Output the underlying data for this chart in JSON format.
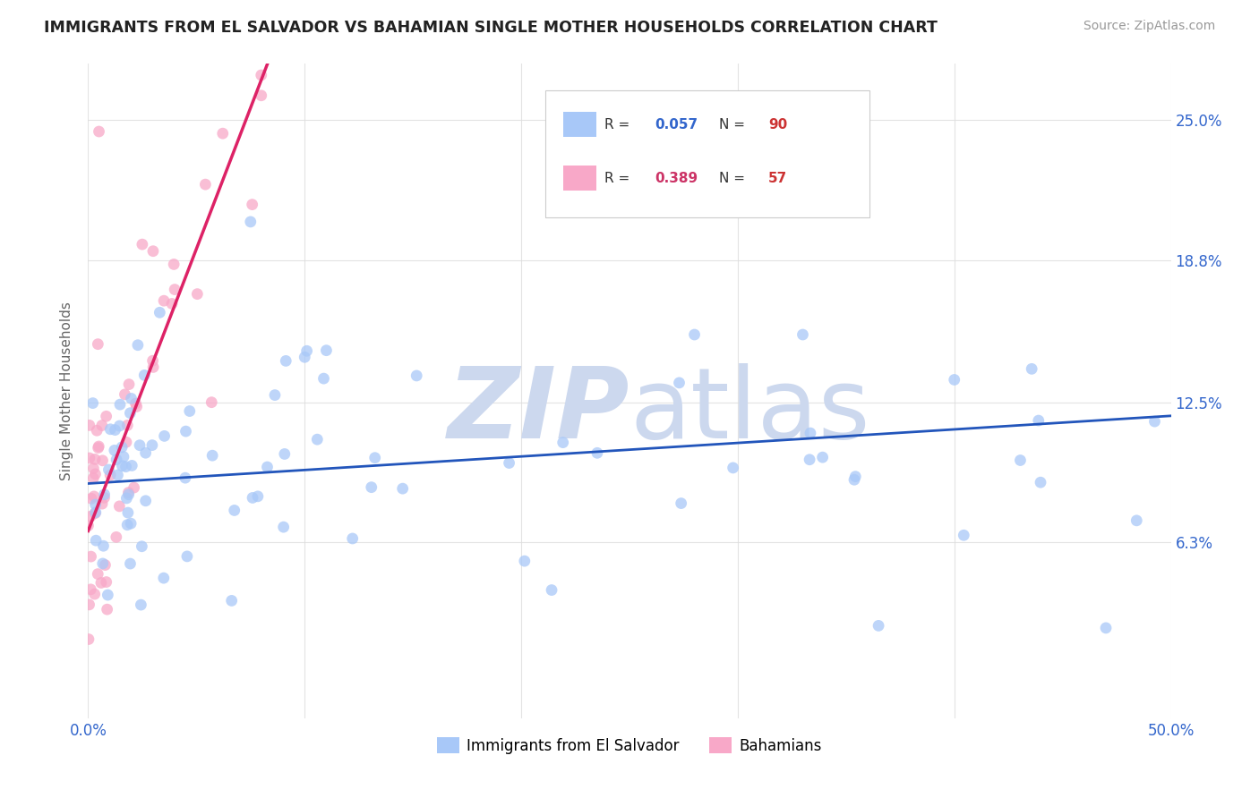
{
  "title": "IMMIGRANTS FROM EL SALVADOR VS BAHAMIAN SINGLE MOTHER HOUSEHOLDS CORRELATION CHART",
  "source": "Source: ZipAtlas.com",
  "ylabel": "Single Mother Households",
  "ytick_labels": [
    "6.3%",
    "12.5%",
    "18.8%",
    "25.0%"
  ],
  "ytick_values": [
    0.063,
    0.125,
    0.188,
    0.25
  ],
  "xlim": [
    0.0,
    0.5
  ],
  "ylim": [
    -0.015,
    0.275
  ],
  "blue_color": "#a8c8f8",
  "pink_color": "#f8a8c8",
  "blue_line_color": "#2255bb",
  "pink_line_color": "#dd2266",
  "pink_dash_color": "#ddaacc",
  "watermark_color": "#ccd8ee",
  "background_color": "#ffffff",
  "grid_color": "#dddddd",
  "blue_r": "0.057",
  "blue_n": "90",
  "pink_r": "0.389",
  "pink_n": "57",
  "r_color": "#3366cc",
  "n_color": "#cc3333",
  "pink_r_color": "#cc3366"
}
